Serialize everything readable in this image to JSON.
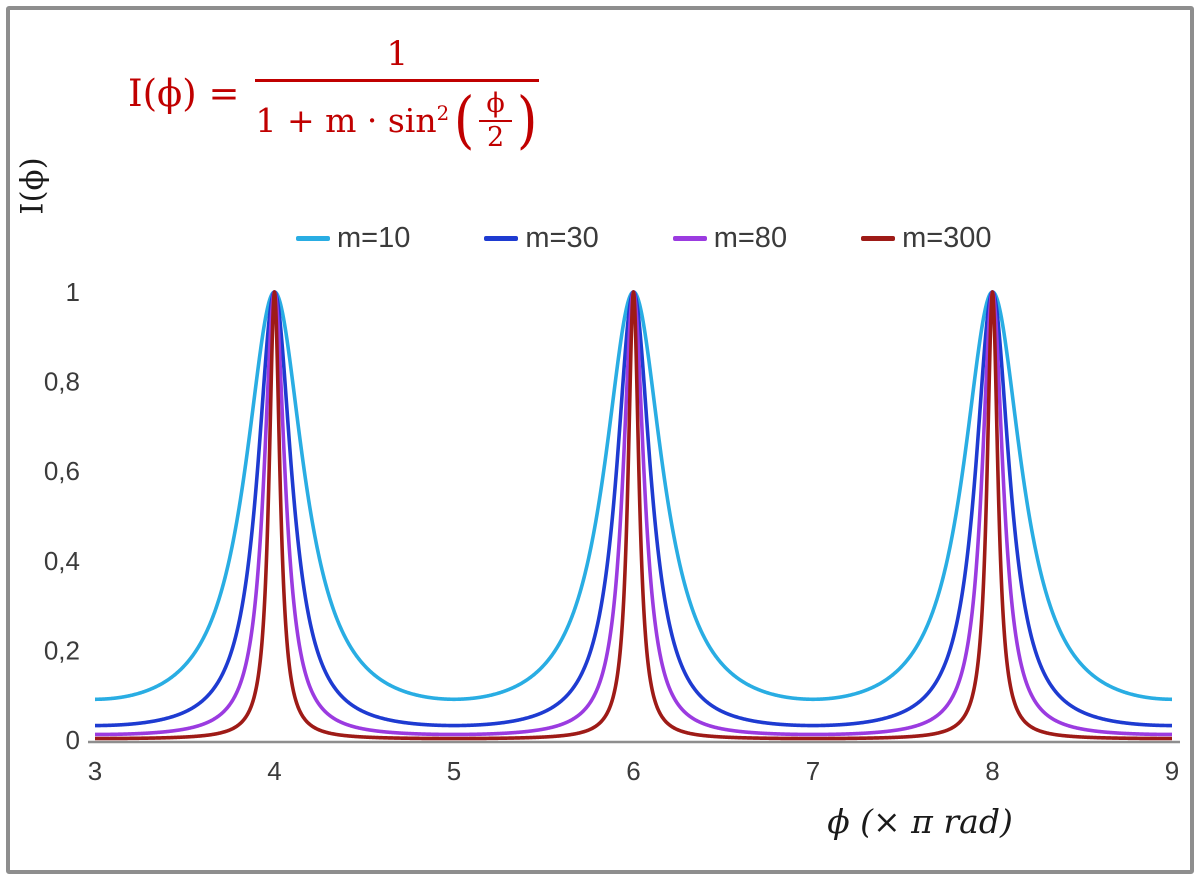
{
  "chart_data": {
    "type": "line",
    "title": "",
    "formula_label": "I(ϕ) = 1 / (1 + m·sin²(ϕ/2))",
    "function": "I = 1 / (1 + m·sin²(x·π/2)), x in units of π rad; peaks of height 1 at x = 4, 6, 8",
    "xlabel": "ϕ  (× π rad)",
    "ylabel": "I(ϕ)",
    "xlim": [
      3,
      9
    ],
    "ylim": [
      0,
      1
    ],
    "x_ticks": [
      3,
      4,
      5,
      6,
      7,
      8,
      9
    ],
    "y_ticks": [
      0,
      0.2,
      0.4,
      0.6,
      0.8,
      1
    ],
    "y_tick_labels": [
      "0",
      "0,2",
      "0,4",
      "0,6",
      "0,8",
      "1"
    ],
    "grid": false,
    "legend_position": "top",
    "axis_color": "#8e8e8e",
    "tick_text_color": "#3b3b3b",
    "series": [
      {
        "name": "m=10",
        "m": 10,
        "color": "#29ADE3"
      },
      {
        "name": "m=30",
        "m": 30,
        "color": "#1E3BD1"
      },
      {
        "name": "m=80",
        "m": 80,
        "color": "#9B3BE0"
      },
      {
        "name": "m=300",
        "m": 300,
        "color": "#9E1B17"
      }
    ]
  },
  "formula": {
    "lhs": "I(ϕ) =",
    "numerator": "1",
    "den_prefix": "1 + m · sin",
    "den_sup": "2",
    "paren_open": "(",
    "inner_num": "ϕ",
    "inner_den": "2",
    "color": "#C00000"
  },
  "paren_close": ")"
}
